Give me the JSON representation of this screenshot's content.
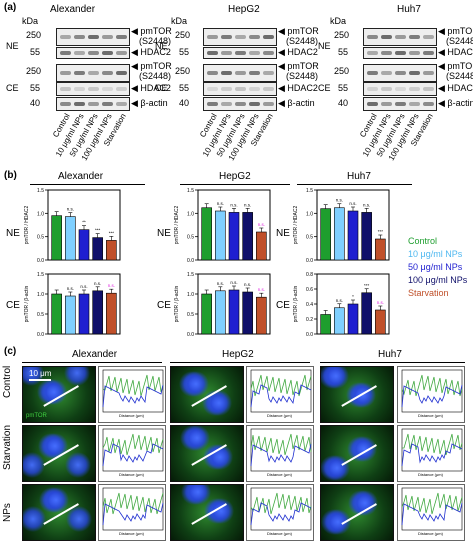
{
  "panels": {
    "a": "(a)",
    "b": "(b)",
    "c": "(c)"
  },
  "cells": [
    "Alexander",
    "HepG2",
    "Huh7"
  ],
  "section_a": {
    "kda": "kDa",
    "mw_top": [
      "250",
      "55"
    ],
    "mw_bottom": [
      "250",
      "55",
      "40"
    ],
    "fractions": [
      "NE",
      "CE"
    ],
    "bands_top": [
      "pmTOR",
      "(S2448)",
      "HDAC2"
    ],
    "bands_bottom": [
      "pmTOR",
      "(S2448)",
      "HDAC2",
      "β-actin"
    ],
    "lanes": [
      "Control",
      "10 μg/ml NPs",
      "50 μg/ml NPs",
      "100 μg/ml NPs",
      "Starvation"
    ]
  },
  "section_b": {
    "ylabel_ne": "pmTOR / HDAC2",
    "ylabel_ce": "pmTOR / β-actin",
    "legend": [
      "Control",
      "10 μg/ml NPs",
      "50 μg/ml NPs",
      "100 μg/ml NPs",
      "Starvation"
    ],
    "colors": [
      "#1e9e2e",
      "#7fd0ff",
      "#1f1fd0",
      "#10106a",
      "#c0502a"
    ],
    "bar_annotation_color": "#e020e0"
  },
  "section_c": {
    "rows": [
      "Control",
      "Starvation",
      "NPs"
    ],
    "scale": "10 μm",
    "stain": "pmTOR",
    "x_axis": "Distance (μm)",
    "y_axis": "Fluorescence (AU)"
  },
  "chart_data": [
    {
      "type": "bar",
      "title": "Alexander",
      "ylabel": "pmTOR / HDAC2",
      "ylim": [
        0,
        1.5
      ],
      "yticks": [
        "0.0",
        "0.5",
        "1.0",
        "1.5"
      ],
      "categories": [
        "Control",
        "10 μg/ml NPs",
        "50 μg/ml NPs",
        "100 μg/ml NPs",
        "Starvation"
      ],
      "values": [
        0.95,
        0.93,
        0.65,
        0.48,
        0.42
      ],
      "labels": [
        "",
        "n.s.",
        "**",
        "***",
        "***"
      ]
    },
    {
      "type": "bar",
      "title": "HepG2",
      "ylabel": "pmTOR / HDAC2",
      "ylim": [
        0,
        1.5
      ],
      "yticks": [
        "0.0",
        "0.5",
        "1.0",
        "1.5"
      ],
      "categories": [
        "Control",
        "10 μg/ml NPs",
        "50 μg/ml NPs",
        "100 μg/ml NPs",
        "Starvation"
      ],
      "values": [
        1.12,
        1.05,
        1.02,
        1.02,
        0.6
      ],
      "labels": [
        "",
        "n.s.",
        "n.s.",
        "n.s.",
        "n.s."
      ]
    },
    {
      "type": "bar",
      "title": "Huh7",
      "ylabel": "pmTOR / HDAC2",
      "ylim": [
        0,
        1.5
      ],
      "yticks": [
        "0.0",
        "0.5",
        "1.0",
        "1.5"
      ],
      "categories": [
        "Control",
        "10 μg/ml NPs",
        "50 μg/ml NPs",
        "100 μg/ml NPs",
        "Starvation"
      ],
      "values": [
        1.1,
        1.12,
        1.05,
        1.02,
        0.45
      ],
      "labels": [
        "",
        "n.s.",
        "n.s.",
        "n.s.",
        "***"
      ]
    },
    {
      "type": "bar",
      "title": "Alexander",
      "ylabel": "pmTOR / β-actin",
      "ylim": [
        0,
        1.5
      ],
      "yticks": [
        "0.0",
        "0.5",
        "1.0",
        "1.5"
      ],
      "categories": [
        "Control",
        "10 μg/ml NPs",
        "50 μg/ml NPs",
        "100 μg/ml NPs",
        "Starvation"
      ],
      "values": [
        1.0,
        0.95,
        1.0,
        1.08,
        1.02
      ],
      "labels": [
        "",
        "n.s.",
        "n.s.",
        "n.s.",
        "n.s."
      ]
    },
    {
      "type": "bar",
      "title": "HepG2",
      "ylabel": "pmTOR / β-actin",
      "ylim": [
        0,
        1.5
      ],
      "yticks": [
        "0.0",
        "0.5",
        "1.0",
        "1.5"
      ],
      "categories": [
        "Control",
        "10 μg/ml NPs",
        "50 μg/ml NPs",
        "100 μg/ml NPs",
        "Starvation"
      ],
      "values": [
        1.0,
        1.08,
        1.1,
        1.05,
        0.92
      ],
      "labels": [
        "",
        "n.s.",
        "n.s.",
        "n.s.",
        "n.s."
      ]
    },
    {
      "type": "bar",
      "title": "Huh7",
      "ylabel": "pmTOR / β-actin",
      "ylim": [
        0,
        0.8
      ],
      "yticks": [
        "0.0",
        "0.2",
        "0.4",
        "0.6",
        "0.8"
      ],
      "categories": [
        "Control",
        "10 μg/ml NPs",
        "50 μg/ml NPs",
        "100 μg/ml NPs",
        "Starvation"
      ],
      "values": [
        0.26,
        0.35,
        0.4,
        0.55,
        0.32
      ],
      "labels": [
        "",
        "n.s.",
        "*",
        "***",
        "n.s."
      ]
    }
  ]
}
